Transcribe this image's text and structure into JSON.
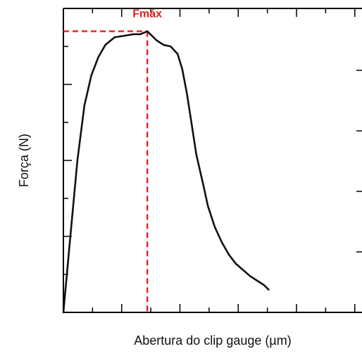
{
  "chart_data": {
    "type": "line",
    "title": "",
    "xlabel": "Abertura do clip gauge (µm)",
    "ylabel": "Força (N)",
    "xlim": [
      0,
      1
    ],
    "ylim": [
      0,
      1
    ],
    "grid": false,
    "series": [
      {
        "x": [
          0.0,
          0.03,
          0.06,
          0.09,
          0.12,
          0.15,
          0.18,
          0.22,
          0.26,
          0.3,
          0.33,
          0.36,
          0.38,
          0.4,
          0.43,
          0.46,
          0.49,
          0.51,
          0.53,
          0.55,
          0.57,
          0.6,
          0.62,
          0.65,
          0.68,
          0.71,
          0.74,
          0.77,
          0.8,
          0.82,
          0.86,
          0.88
        ],
        "y": [
          0.0,
          0.25,
          0.5,
          0.68,
          0.78,
          0.84,
          0.88,
          0.905,
          0.91,
          0.915,
          0.915,
          0.925,
          0.91,
          0.895,
          0.88,
          0.875,
          0.85,
          0.8,
          0.72,
          0.62,
          0.52,
          0.42,
          0.35,
          0.28,
          0.23,
          0.19,
          0.16,
          0.14,
          0.12,
          0.11,
          0.09,
          0.075
        ]
      }
    ],
    "annotations": [
      {
        "text": "Fmáx",
        "x": 0.36,
        "y": 0.925,
        "color": "#e02020"
      }
    ]
  }
}
